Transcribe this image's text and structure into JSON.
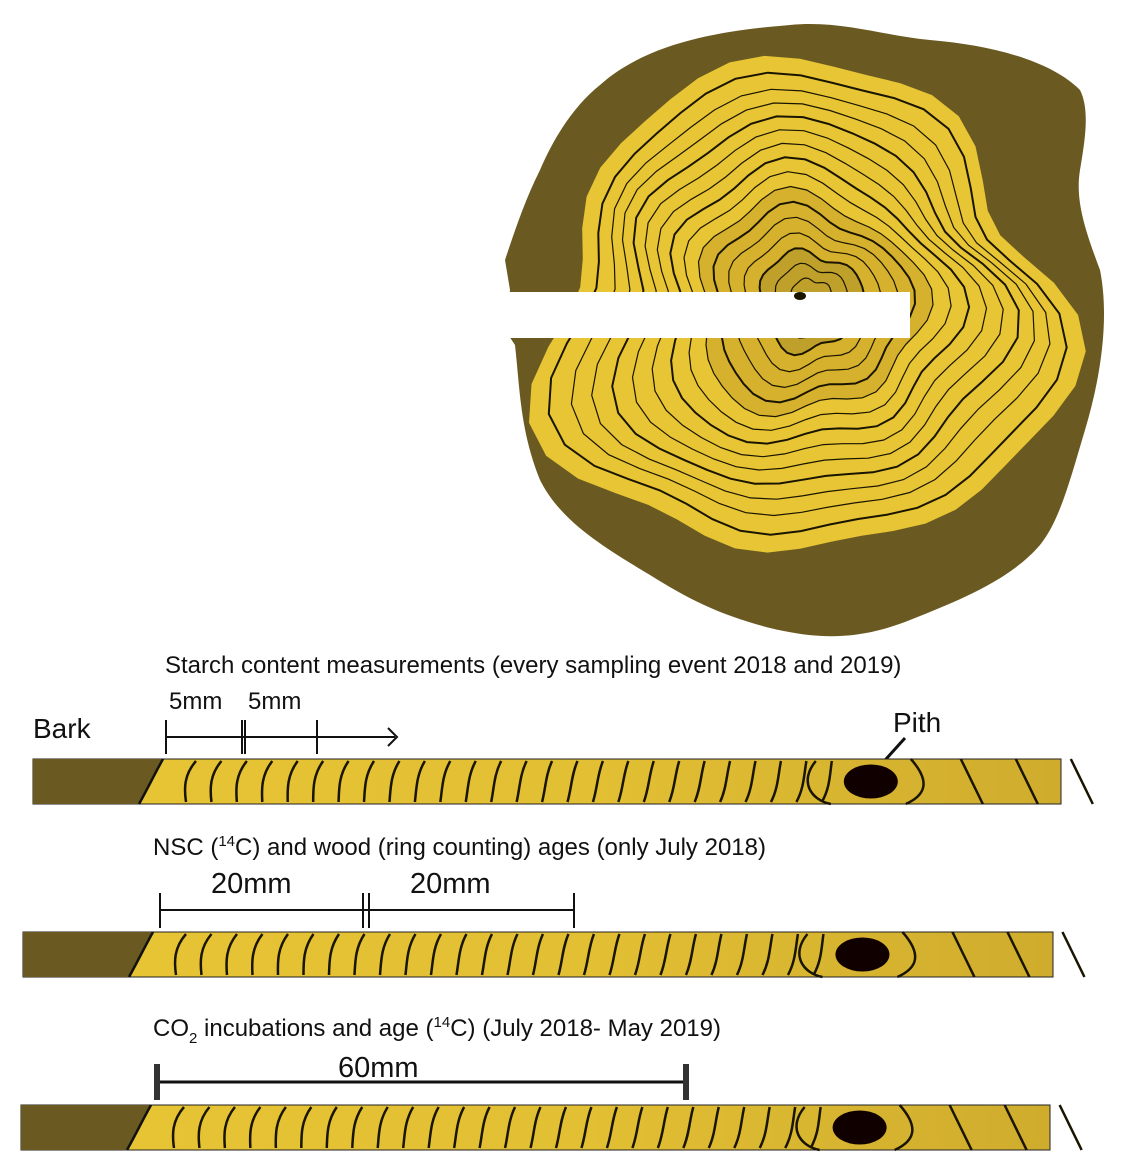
{
  "colors": {
    "bark": "#6a5a21",
    "wood_light": "#e8c535",
    "wood_mid": "#d6b12d",
    "wood_dark": "#bfa02a",
    "ring_line": "#1a1500",
    "pith": "#110000",
    "cut": "#ffffff"
  },
  "cross_section": {
    "description_icon": "tree-trunk-cross-section-icon"
  },
  "panels": [
    {
      "title": "Starch content measurements (every sampling event 2018 and 2019)",
      "bark_label": "Bark",
      "pith_label": "Pith",
      "segments": [
        "5mm",
        "5mm"
      ]
    },
    {
      "title_parts": [
        "NSC (",
        "14",
        "C) and wood (ring counting) ages (only July 2018)"
      ],
      "segments": [
        "20mm",
        "20mm"
      ]
    },
    {
      "title_parts": [
        "CO",
        "2",
        " incubations and age (",
        "14",
        "C) (July 2018- May 2019)"
      ],
      "segments": [
        "60mm"
      ]
    }
  ]
}
